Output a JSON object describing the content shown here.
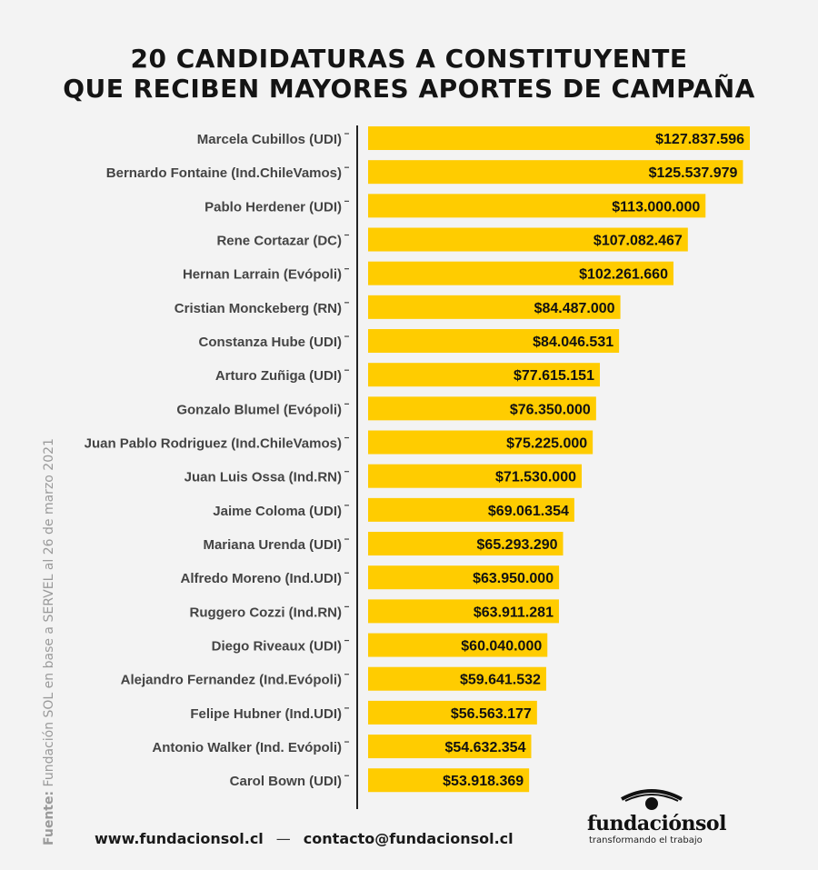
{
  "title_line1": "20 CANDIDATURAS A CONSTITUYENTE",
  "title_line2": "QUE RECIBEN MAYORES APORTES DE CAMPAÑA",
  "source_label": "Fuente:",
  "source_text": "Fundación SOL en base a SERVEL al 26 de marzo 2021",
  "footer": {
    "website": "www.fundacionsol.cl",
    "separator": "—",
    "email": "contacto@fundacionsol.cl"
  },
  "logo": {
    "name": "fundaciónsol",
    "tagline": "transformando el trabajo",
    "icon": "eye-icon"
  },
  "colors": {
    "bar": "#ffcc00",
    "background": "#f3f3f3",
    "text": "#444444"
  },
  "chart_data": {
    "type": "bar",
    "orientation": "horizontal",
    "categories": [
      "Marcela Cubillos (UDI)",
      "Bernardo Fontaine (Ind.ChileVamos)",
      "Pablo Herdener (UDI)",
      "Rene  Cortazar (DC)",
      "Hernan Larrain (Evópoli)",
      "Cristian Monckeberg (RN)",
      "Constanza Hube (UDI)",
      "Arturo Zuñiga (UDI)",
      "Gonzalo Blumel (Evópoli)",
      "Juan Pablo Rodriguez (Ind.ChileVamos)",
      "Juan Luis Ossa (Ind.RN)",
      "Jaime Coloma (UDI)",
      "Mariana Urenda (UDI)",
      "Alfredo Moreno (Ind.UDI)",
      "Ruggero Cozzi (Ind.RN)",
      "Diego Riveaux (UDI)",
      "Alejandro Fernandez (Ind.Evópoli)",
      "Felipe Hubner (Ind.UDI)",
      "Antonio Walker (Ind. Evópoli)",
      "Carol Bown (UDI)"
    ],
    "values": [
      127837596,
      125537979,
      113000000,
      107082467,
      102261660,
      84487000,
      84046531,
      77615151,
      76350000,
      75225000,
      71530000,
      69061354,
      65293290,
      63950000,
      63911281,
      60040000,
      59641532,
      56563177,
      54632354,
      53918369
    ],
    "value_labels": [
      "$127.837.596",
      "$125.537.979",
      "$113.000.000",
      "$107.082.467",
      "$102.261.660",
      "$84.487.000",
      "$84.046.531",
      "$77.615.151",
      "$76.350.000",
      "$75.225.000",
      "$71.530.000",
      "$69.061.354",
      "$65.293.290",
      "$63.950.000",
      "$63.911.281",
      "$60.040.000",
      "$59.641.532",
      "$56.563.177",
      "$54.632.354",
      "$53.918.369"
    ],
    "xlim": [
      0,
      127837596
    ]
  }
}
